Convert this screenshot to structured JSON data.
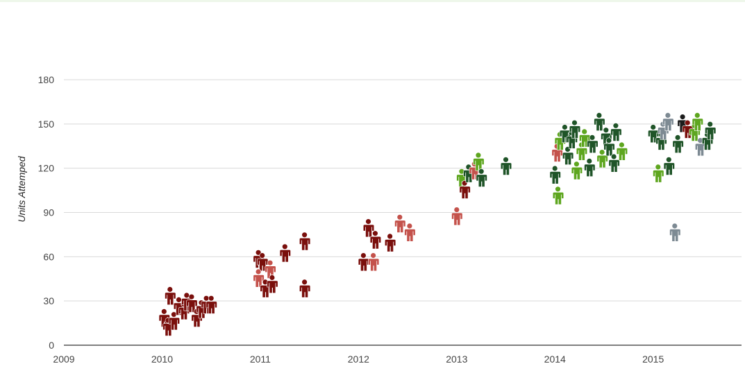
{
  "colors": {
    "dark_red": "#7a0f0c",
    "light_red": "#c4524b",
    "dark_green": "#1f5428",
    "light_green": "#5ea61f",
    "gray": "#7d8a93",
    "near_black": "#1b1b1b",
    "grid": "#d9d9d9",
    "axis": "#333333"
  },
  "icon_shape": "person-icon",
  "chart_data": {
    "type": "scatter",
    "title": "",
    "xlabel": "",
    "ylabel": "Units Attemped",
    "x_ticks": [
      "2009",
      "2010",
      "2011",
      "2012",
      "2013",
      "2014",
      "2015"
    ],
    "xlim": [
      2009,
      2015.9
    ],
    "y_ticks": [
      0,
      30,
      60,
      90,
      120,
      150,
      180
    ],
    "ylim": [
      0,
      180
    ],
    "grid": true,
    "legend": "none",
    "points": [
      {
        "x": 2010.02,
        "y": 20,
        "c": "dark_red"
      },
      {
        "x": 2010.06,
        "y": 14,
        "c": "dark_red"
      },
      {
        "x": 2010.08,
        "y": 35,
        "c": "dark_red"
      },
      {
        "x": 2010.12,
        "y": 18,
        "c": "dark_red"
      },
      {
        "x": 2010.17,
        "y": 28,
        "c": "dark_red"
      },
      {
        "x": 2010.22,
        "y": 25,
        "c": "dark_red"
      },
      {
        "x": 2010.25,
        "y": 31,
        "c": "dark_red"
      },
      {
        "x": 2010.3,
        "y": 30,
        "c": "dark_red"
      },
      {
        "x": 2010.35,
        "y": 20,
        "c": "dark_red"
      },
      {
        "x": 2010.4,
        "y": 26,
        "c": "dark_red"
      },
      {
        "x": 2010.45,
        "y": 29,
        "c": "dark_red"
      },
      {
        "x": 2010.5,
        "y": 29,
        "c": "dark_red"
      },
      {
        "x": 2010.98,
        "y": 60,
        "c": "dark_red"
      },
      {
        "x": 2011.02,
        "y": 58,
        "c": "dark_red"
      },
      {
        "x": 2010.98,
        "y": 47,
        "c": "light_red"
      },
      {
        "x": 2011.05,
        "y": 40,
        "c": "dark_red"
      },
      {
        "x": 2011.1,
        "y": 53,
        "c": "light_red"
      },
      {
        "x": 2011.12,
        "y": 43,
        "c": "dark_red"
      },
      {
        "x": 2011.25,
        "y": 64,
        "c": "dark_red"
      },
      {
        "x": 2011.45,
        "y": 72,
        "c": "dark_red"
      },
      {
        "x": 2011.45,
        "y": 40,
        "c": "dark_red"
      },
      {
        "x": 2012.05,
        "y": 58,
        "c": "dark_red"
      },
      {
        "x": 2012.1,
        "y": 81,
        "c": "dark_red"
      },
      {
        "x": 2012.15,
        "y": 58,
        "c": "light_red"
      },
      {
        "x": 2012.17,
        "y": 73,
        "c": "dark_red"
      },
      {
        "x": 2012.32,
        "y": 71,
        "c": "dark_red"
      },
      {
        "x": 2012.42,
        "y": 84,
        "c": "light_red"
      },
      {
        "x": 2012.52,
        "y": 78,
        "c": "light_red"
      },
      {
        "x": 2013.0,
        "y": 89,
        "c": "light_red"
      },
      {
        "x": 2013.05,
        "y": 115,
        "c": "light_green"
      },
      {
        "x": 2013.08,
        "y": 107,
        "c": "dark_red"
      },
      {
        "x": 2013.12,
        "y": 118,
        "c": "dark_green"
      },
      {
        "x": 2013.18,
        "y": 120,
        "c": "light_red"
      },
      {
        "x": 2013.22,
        "y": 126,
        "c": "light_green"
      },
      {
        "x": 2013.25,
        "y": 115,
        "c": "dark_green"
      },
      {
        "x": 2013.5,
        "y": 123,
        "c": "dark_green"
      },
      {
        "x": 2014.0,
        "y": 117,
        "c": "dark_green"
      },
      {
        "x": 2014.03,
        "y": 103,
        "c": "light_green"
      },
      {
        "x": 2014.02,
        "y": 132,
        "c": "light_red"
      },
      {
        "x": 2014.05,
        "y": 140,
        "c": "light_green"
      },
      {
        "x": 2014.1,
        "y": 145,
        "c": "dark_green"
      },
      {
        "x": 2014.13,
        "y": 130,
        "c": "dark_green"
      },
      {
        "x": 2014.17,
        "y": 141,
        "c": "dark_green"
      },
      {
        "x": 2014.2,
        "y": 148,
        "c": "dark_green"
      },
      {
        "x": 2014.22,
        "y": 120,
        "c": "light_green"
      },
      {
        "x": 2014.27,
        "y": 133,
        "c": "light_green"
      },
      {
        "x": 2014.3,
        "y": 142,
        "c": "light_green"
      },
      {
        "x": 2014.35,
        "y": 122,
        "c": "dark_green"
      },
      {
        "x": 2014.38,
        "y": 138,
        "c": "dark_green"
      },
      {
        "x": 2014.45,
        "y": 153,
        "c": "dark_green"
      },
      {
        "x": 2014.48,
        "y": 128,
        "c": "light_green"
      },
      {
        "x": 2014.52,
        "y": 143,
        "c": "dark_green"
      },
      {
        "x": 2014.55,
        "y": 136,
        "c": "dark_green"
      },
      {
        "x": 2014.6,
        "y": 125,
        "c": "dark_green"
      },
      {
        "x": 2014.62,
        "y": 146,
        "c": "dark_green"
      },
      {
        "x": 2014.68,
        "y": 133,
        "c": "light_green"
      },
      {
        "x": 2015.0,
        "y": 145,
        "c": "dark_green"
      },
      {
        "x": 2015.05,
        "y": 118,
        "c": "light_green"
      },
      {
        "x": 2015.08,
        "y": 140,
        "c": "dark_green"
      },
      {
        "x": 2015.1,
        "y": 147,
        "c": "gray"
      },
      {
        "x": 2015.15,
        "y": 153,
        "c": "gray"
      },
      {
        "x": 2015.16,
        "y": 123,
        "c": "dark_green"
      },
      {
        "x": 2015.22,
        "y": 78,
        "c": "gray"
      },
      {
        "x": 2015.25,
        "y": 138,
        "c": "dark_green"
      },
      {
        "x": 2015.3,
        "y": 152,
        "c": "near_black"
      },
      {
        "x": 2015.35,
        "y": 148,
        "c": "dark_red"
      },
      {
        "x": 2015.42,
        "y": 146,
        "c": "light_green"
      },
      {
        "x": 2015.45,
        "y": 153,
        "c": "light_green"
      },
      {
        "x": 2015.48,
        "y": 136,
        "c": "gray"
      },
      {
        "x": 2015.55,
        "y": 140,
        "c": "dark_green"
      },
      {
        "x": 2015.58,
        "y": 147,
        "c": "dark_green"
      }
    ]
  }
}
